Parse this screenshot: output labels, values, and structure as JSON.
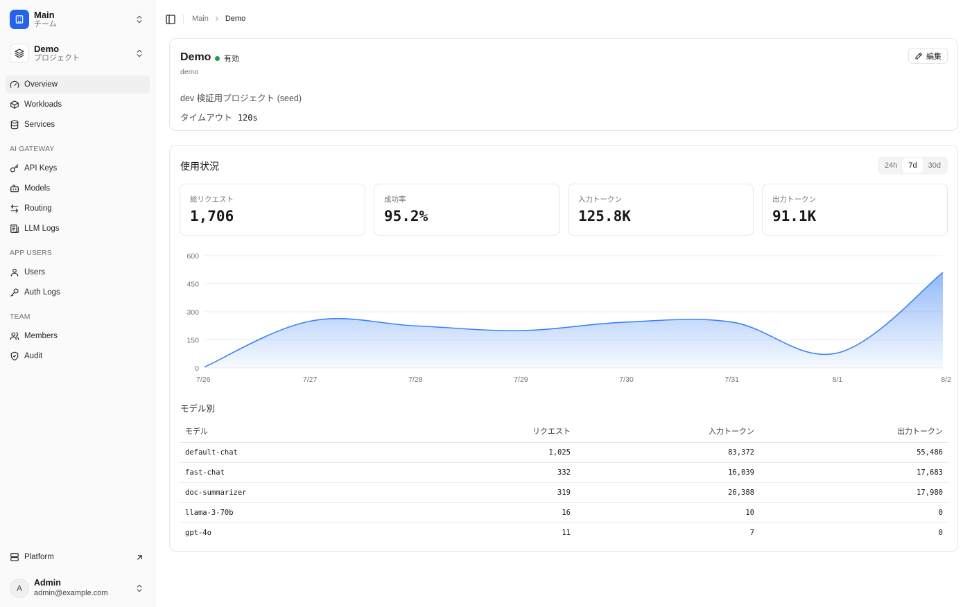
{
  "team_switcher": {
    "title": "Main",
    "subtitle": "チーム"
  },
  "project_switcher": {
    "title": "Demo",
    "subtitle": "プロジェクト"
  },
  "nav": {
    "main": [
      {
        "label": "Overview",
        "icon": "gauge-icon"
      },
      {
        "label": "Workloads",
        "icon": "box-icon"
      },
      {
        "label": "Services",
        "icon": "database-icon"
      }
    ],
    "ai_gateway": {
      "label": "AI GATEWAY",
      "items": [
        {
          "label": "API Keys",
          "icon": "key-icon"
        },
        {
          "label": "Models",
          "icon": "bot-icon"
        },
        {
          "label": "Routing",
          "icon": "arrows-icon"
        },
        {
          "label": "LLM Logs",
          "icon": "logs-icon"
        }
      ]
    },
    "app_users": {
      "label": "APP USERS",
      "items": [
        {
          "label": "Users",
          "icon": "user-icon"
        },
        {
          "label": "Auth Logs",
          "icon": "key-round-icon"
        }
      ]
    },
    "team": {
      "label": "TEAM",
      "items": [
        {
          "label": "Members",
          "icon": "users-icon"
        },
        {
          "label": "Audit",
          "icon": "shield-check-icon"
        }
      ]
    },
    "platform": {
      "label": "Platform",
      "icon": "server-icon"
    }
  },
  "user": {
    "initial": "A",
    "name": "Admin",
    "email": "admin@example.com"
  },
  "breadcrumb": {
    "root": "Main",
    "current": "Demo"
  },
  "project": {
    "name": "Demo",
    "status": "有効",
    "status_color": "#16a34a",
    "slug": "demo",
    "description": "dev 検証用プロジェクト (seed)",
    "timeout_label": "タイムアウト",
    "timeout_value": "120s",
    "edit_label": "編集"
  },
  "usage": {
    "title": "使用状況",
    "ranges": [
      "24h",
      "7d",
      "30d"
    ],
    "selected_range": "7d",
    "stats": [
      {
        "label": "総リクエスト",
        "value": "1,706"
      },
      {
        "label": "成功率",
        "value": "95.2%"
      },
      {
        "label": "入力トークン",
        "value": "125.8K"
      },
      {
        "label": "出力トークン",
        "value": "91.1K"
      }
    ]
  },
  "chart_data": {
    "type": "area",
    "x": [
      "7/26",
      "7/27",
      "7/28",
      "7/29",
      "7/30",
      "7/31",
      "8/1",
      "8/2"
    ],
    "values": [
      5,
      250,
      225,
      200,
      245,
      245,
      80,
      510
    ],
    "yticks": [
      0,
      150,
      300,
      450,
      600
    ],
    "ylim": [
      0,
      600
    ],
    "grid": true,
    "color": "#3b82f6"
  },
  "by_model": {
    "title": "モデル別",
    "columns": [
      "モデル",
      "リクエスト",
      "入力トークン",
      "出力トークン"
    ],
    "rows": [
      [
        "default-chat",
        "1,025",
        "83,372",
        "55,486"
      ],
      [
        "fast-chat",
        "332",
        "16,039",
        "17,683"
      ],
      [
        "doc-summarizer",
        "319",
        "26,388",
        "17,980"
      ],
      [
        "llama-3-70b",
        "16",
        "10",
        "0"
      ],
      [
        "gpt-4o",
        "11",
        "7",
        "0"
      ]
    ]
  }
}
